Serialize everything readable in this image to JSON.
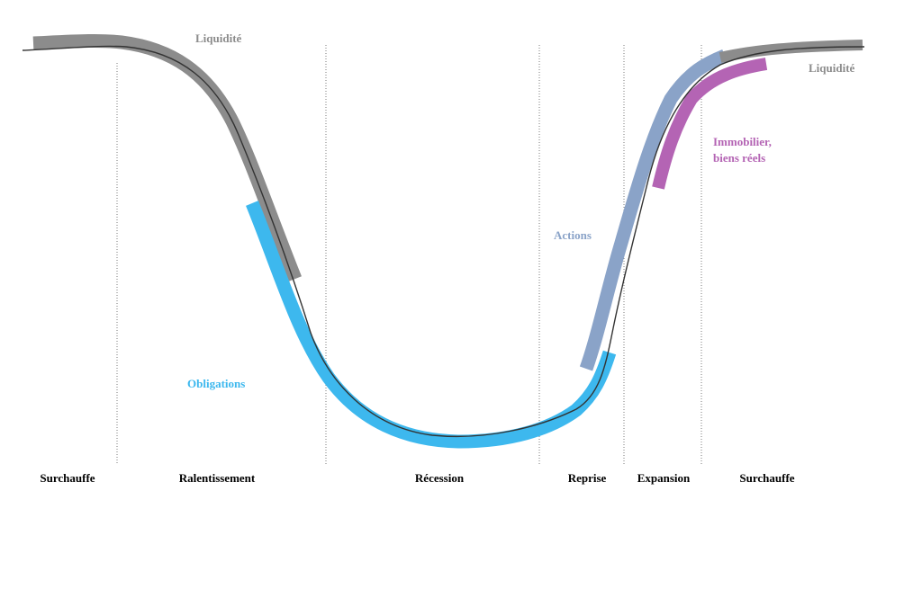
{
  "phases": [
    "Surchauffe",
    "Ralentissement",
    "Récession",
    "Reprise",
    "Expansion",
    "Surchauffe"
  ],
  "assets": {
    "liquidite_left": {
      "label": "Liquidité",
      "color": "#8c8c8c"
    },
    "liquidite_right": {
      "label": "Liquidité",
      "color": "#8c8c8c"
    },
    "obligations": {
      "label": "Obligations",
      "color": "#3db8ee"
    },
    "actions": {
      "label": "Actions",
      "color": "#8aa3c8"
    },
    "immobilier": {
      "label_line1": "Immobilier,",
      "label_line2": "biens réels",
      "color": "#b464b4"
    }
  },
  "colors": {
    "cycle_curve": "#333333",
    "phase_text": "#000000",
    "dividers": "#7a7a7a"
  }
}
